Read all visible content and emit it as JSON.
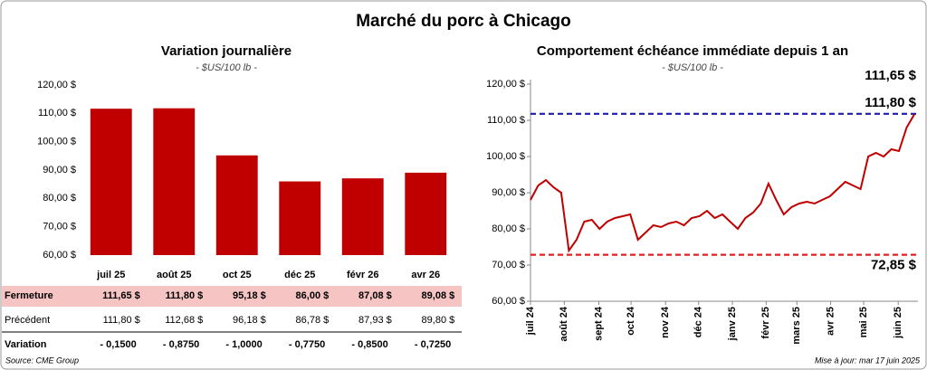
{
  "title": "Marché du porc à Chicago",
  "chart_data": [
    {
      "type": "bar",
      "title": "Variation journalière",
      "subtitle": "- $US/100 lb -",
      "categories": [
        "juil 25",
        "août 25",
        "oct 25",
        "déc 25",
        "févr 26",
        "avr 26"
      ],
      "values": [
        111.65,
        111.8,
        95.18,
        86.0,
        87.08,
        89.08
      ],
      "value_labels": [
        "111,65  $",
        "111,80  $",
        "95,18  $",
        "86,00  $",
        "87,08  $",
        "89,08  $"
      ],
      "color": "#c00000",
      "ylim": [
        60,
        120
      ],
      "yticks": [
        {
          "value": 60,
          "label": "60,00 $"
        },
        {
          "value": 70,
          "label": "70,00 $"
        },
        {
          "value": 80,
          "label": "80,00 $"
        },
        {
          "value": 90,
          "label": "90,00 $"
        },
        {
          "value": 100,
          "label": "100,00 $"
        },
        {
          "value": 110,
          "label": "110,00 $"
        },
        {
          "value": 120,
          "label": "120,00 $"
        }
      ]
    },
    {
      "type": "line",
      "title": "Comportement échéance immédiate depuis 1 an",
      "subtitle": "- $US/100 lb -",
      "x": [
        0,
        1,
        2,
        3,
        4,
        5,
        6,
        7,
        8,
        9,
        10,
        11,
        12,
        13,
        14,
        15,
        16,
        17,
        18,
        19,
        20,
        21,
        22,
        23,
        24,
        25,
        26,
        27,
        28,
        29,
        30,
        31,
        32,
        33,
        34,
        35,
        36,
        37,
        38,
        39,
        40,
        41,
        42,
        43,
        44,
        45,
        46,
        47,
        48,
        49,
        50
      ],
      "values": [
        88,
        92,
        93.5,
        91.5,
        90,
        74,
        77,
        82,
        82.5,
        80,
        82,
        83,
        83.5,
        84,
        77,
        79,
        81,
        80.5,
        81.5,
        82,
        81,
        83,
        83.5,
        85,
        83,
        84,
        82,
        80,
        83,
        84.5,
        87,
        92.5,
        88,
        84,
        86,
        87,
        87.5,
        87,
        88,
        89,
        91,
        93,
        92,
        91,
        100,
        101,
        100,
        102,
        101.5,
        108,
        111.65
      ],
      "color": "#c00000",
      "annotation": "111,65 $",
      "xlim": [
        0,
        50
      ],
      "xticks": [
        {
          "value": 0,
          "label": "juil 24"
        },
        {
          "value": 4.4,
          "label": "août 24"
        },
        {
          "value": 8.9,
          "label": "sept 24"
        },
        {
          "value": 13.1,
          "label": "oct 24"
        },
        {
          "value": 17.6,
          "label": "nov 24"
        },
        {
          "value": 21.9,
          "label": "déc 24"
        },
        {
          "value": 26.3,
          "label": "janv 25"
        },
        {
          "value": 30.7,
          "label": "févr 25"
        },
        {
          "value": 34.7,
          "label": "mars 25"
        },
        {
          "value": 39.1,
          "label": "avr 25"
        },
        {
          "value": 43.4,
          "label": "mai 25"
        },
        {
          "value": 47.9,
          "label": "juin 25"
        }
      ],
      "ylim": [
        60,
        120
      ],
      "yticks": [
        {
          "value": 60,
          "label": "60,00 $"
        },
        {
          "value": 70,
          "label": "70,00 $"
        },
        {
          "value": 80,
          "label": "80,00 $"
        },
        {
          "value": 90,
          "label": "90,00 $"
        },
        {
          "value": 100,
          "label": "100,00 $"
        },
        {
          "value": 110,
          "label": "110,00 $"
        },
        {
          "value": 120,
          "label": "120,00 $"
        }
      ],
      "reference_lines": [
        {
          "value": 111.8,
          "label": "111,80 $",
          "color": "#1c1ca8"
        },
        {
          "value": 72.85,
          "label": "72,85 $",
          "color": "#e02020"
        }
      ]
    }
  ],
  "table": {
    "row_labels": [
      "Fermeture",
      "Précédent",
      "Variation"
    ],
    "previous": [
      "111,80  $",
      "112,68  $",
      "96,18  $",
      "86,78  $",
      "87,93  $",
      "89,80  $"
    ],
    "change": [
      "- 0,1500",
      "- 0,8750",
      "- 1,0000",
      "- 0,7750",
      "- 0,8500",
      "- 0,7250"
    ]
  },
  "source": "Source: CME Group",
  "updated": "Mise à jour: mar 17 juin 2025"
}
